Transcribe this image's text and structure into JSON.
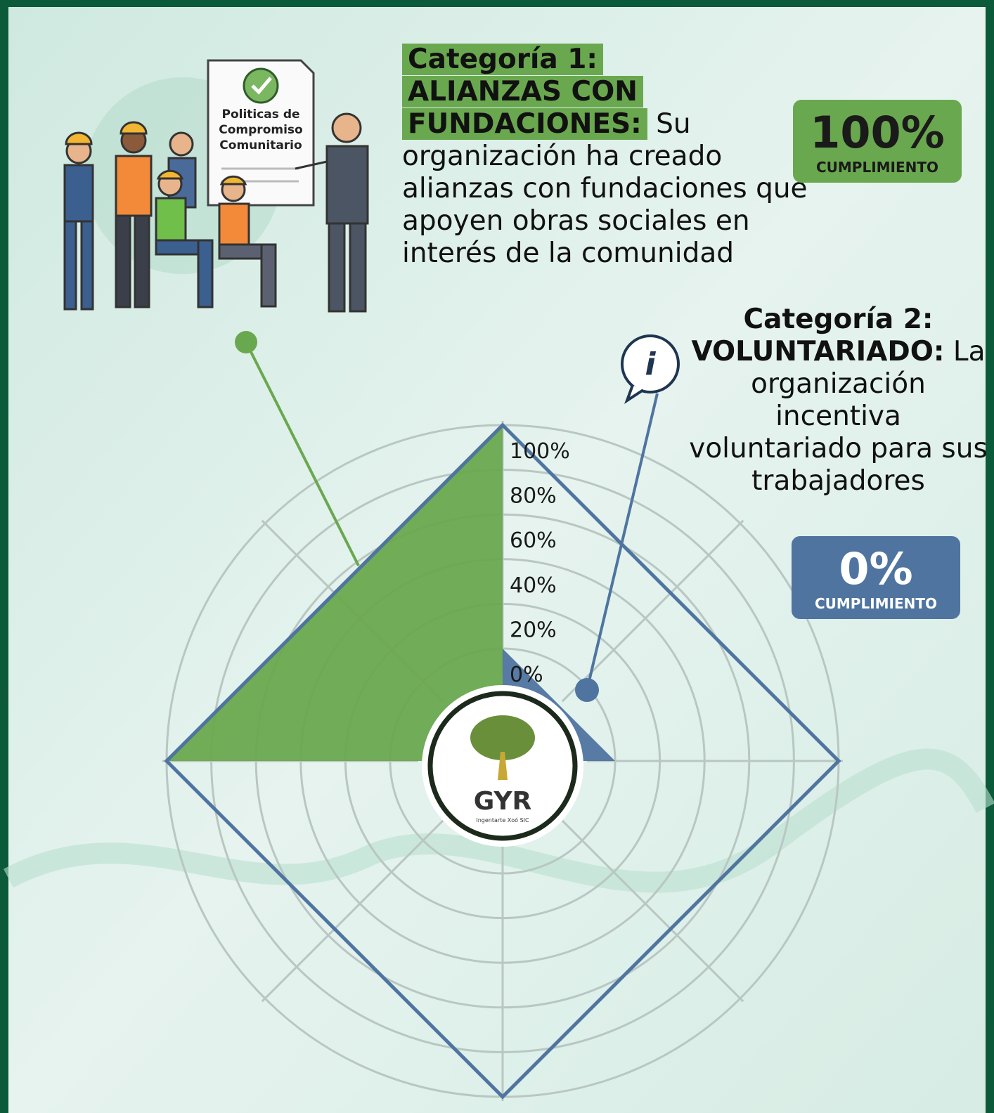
{
  "chart_data": {
    "type": "radar",
    "rlim": [
      0,
      100
    ],
    "rticks": [
      {
        "value": 0,
        "label": "0%"
      },
      {
        "value": 20,
        "label": "20%"
      },
      {
        "value": 40,
        "label": "40%"
      },
      {
        "value": 60,
        "label": "60%"
      },
      {
        "value": 80,
        "label": "80%"
      },
      {
        "value": 100,
        "label": "100%"
      }
    ],
    "categories": [
      {
        "heading": "Categoría 1:",
        "name": "ALIANZAS CON FUNDACIONES:",
        "description": "Su organización ha creado alianzas con fundaciones que apoyen obras sociales en interés de la comunidad",
        "badge": "CUMPLIMIENTO"
      },
      {
        "heading": "Categoría 2:",
        "name": "VOLUNTARIADO:",
        "description": "La organización incentiva voluntariado para sus trabajadores",
        "badge": "CUMPLIMIENTO"
      }
    ],
    "values": [
      100,
      0
    ],
    "value_labels": [
      "100%",
      "0%"
    ],
    "colors": [
      "#6aa84f",
      "#4f74a0"
    ],
    "grid": true
  },
  "illustration": {
    "sign_lines": [
      "Politicas de",
      "Compromiso",
      "Comunitario"
    ]
  },
  "logo": {
    "name": "GYR",
    "tagline": "Ingentarte Xoó SIC"
  }
}
